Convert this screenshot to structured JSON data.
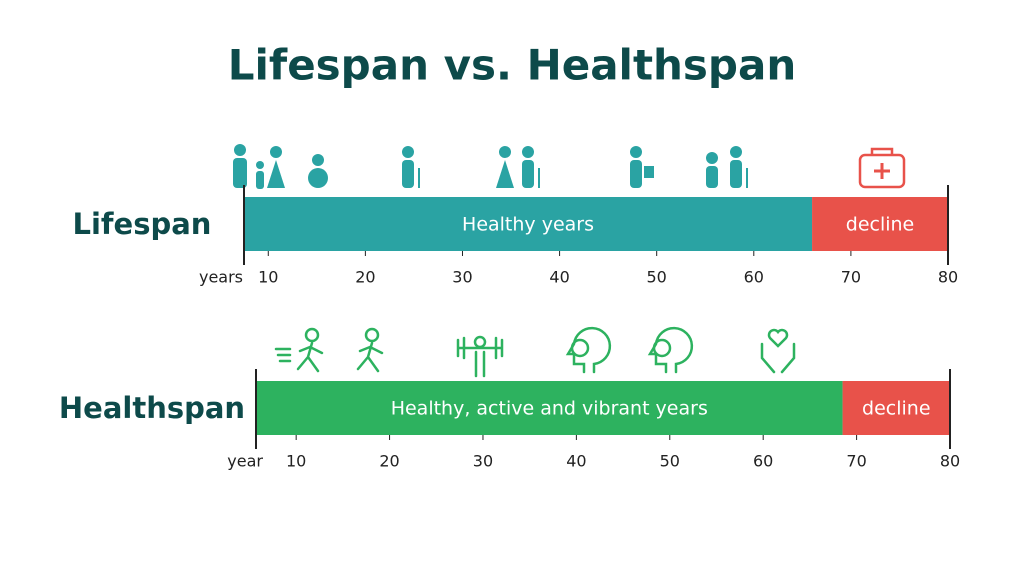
{
  "title": "Lifespan vs. Healthspan",
  "chart_data": [
    {
      "type": "span",
      "label": "Lifespan",
      "axis_label": "years",
      "xlim": [
        7.5,
        80
      ],
      "xticks": [
        10,
        20,
        30,
        40,
        50,
        60,
        70,
        80
      ],
      "segments": [
        {
          "name": "Healthy years",
          "color": "#2aa3a3",
          "start": 7.5,
          "end": 66
        },
        {
          "name": "decline",
          "color": "#e8524a",
          "start": 66,
          "end": 80
        }
      ]
    },
    {
      "type": "span",
      "label": "Healthspan",
      "axis_label": "year",
      "xlim": [
        5.7,
        80
      ],
      "xticks": [
        10,
        20,
        30,
        40,
        50,
        60,
        70,
        80
      ],
      "segments": [
        {
          "name": "Healthy, active and vibrant years",
          "color": "#2db25f",
          "start": 5.7,
          "end": 68.5
        },
        {
          "name": "decline",
          "color": "#e8524a",
          "start": 68.5,
          "end": 80
        }
      ]
    }
  ]
}
